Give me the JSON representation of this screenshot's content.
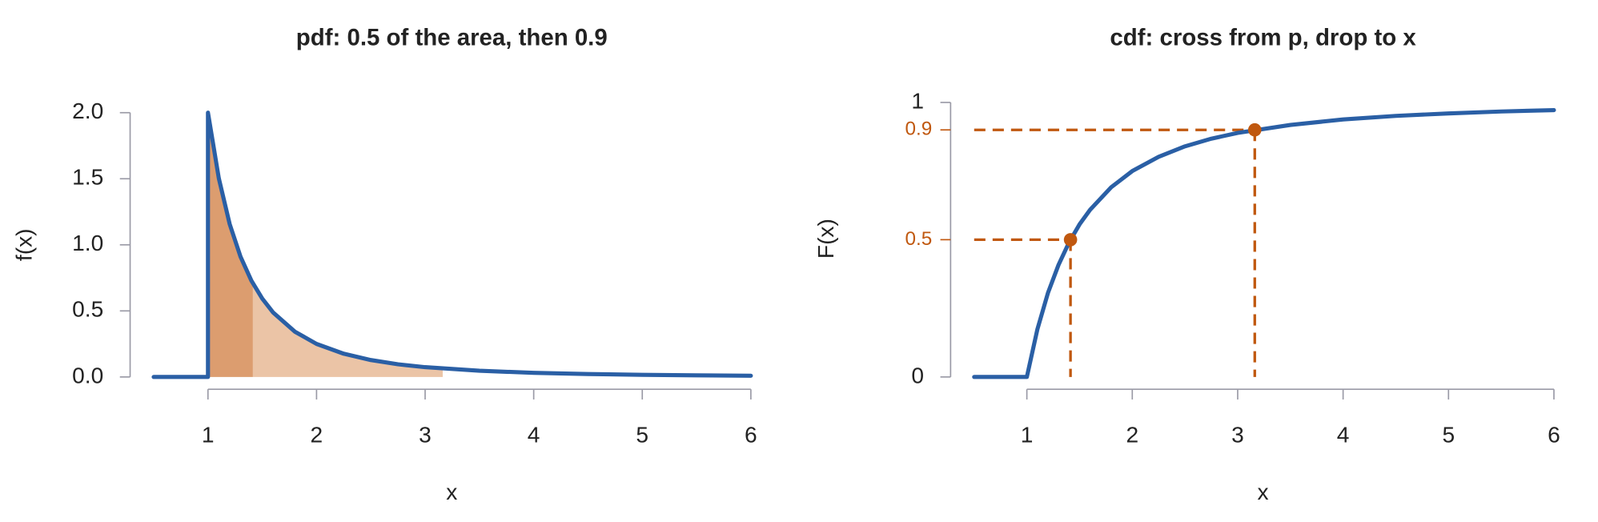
{
  "chart_data": [
    {
      "type": "line",
      "title": "pdf: 0.5 of the area, then 0.9",
      "xlabel": "x",
      "ylabel": "f(x)",
      "x": [
        0.5,
        1,
        1,
        1.1,
        1.2,
        1.3,
        1.4,
        1.5,
        1.6,
        1.8,
        2,
        2.25,
        2.5,
        2.75,
        3,
        3.5,
        4,
        4.5,
        5,
        5.5,
        6
      ],
      "values": [
        0,
        0,
        2,
        1.503,
        1.157,
        0.91,
        0.729,
        0.593,
        0.488,
        0.343,
        0.25,
        0.176,
        0.128,
        0.096,
        0.074,
        0.047,
        0.031,
        0.022,
        0.016,
        0.012,
        0.009
      ],
      "color": "#2a5fa5",
      "xlim": [
        0.5,
        6
      ],
      "ylim": [
        0,
        2
      ],
      "xticks": [
        1,
        2,
        3,
        4,
        5,
        6
      ],
      "yticks": [
        {
          "value": 0,
          "label": "0.0"
        },
        0.5,
        {
          "value": 1,
          "label": "1.0"
        },
        1.5,
        {
          "value": 2,
          "label": "2.0"
        }
      ],
      "regions": [
        {
          "from": 1,
          "to": 1.414,
          "color": "#dc9d6f"
        },
        {
          "from": 1.414,
          "to": 3.162,
          "color": "#ebc4a6"
        }
      ]
    },
    {
      "type": "line",
      "title": "cdf: cross from p, drop to x",
      "xlabel": "x",
      "ylabel": "F(x)",
      "x": [
        0.5,
        1,
        1,
        1.1,
        1.2,
        1.3,
        1.4,
        1.5,
        1.6,
        1.8,
        2,
        2.25,
        2.5,
        2.75,
        3,
        3.5,
        4,
        4.5,
        5,
        5.5,
        6
      ],
      "values": [
        0,
        0,
        0,
        0.174,
        0.306,
        0.408,
        0.49,
        0.556,
        0.609,
        0.691,
        0.75,
        0.802,
        0.84,
        0.868,
        0.889,
        0.918,
        0.938,
        0.951,
        0.96,
        0.967,
        0.972
      ],
      "color": "#2a5fa5",
      "xlim": [
        0.5,
        6
      ],
      "ylim": [
        0,
        1
      ],
      "xticks": [
        1,
        2,
        3,
        4,
        5,
        6
      ],
      "yticks": [
        0,
        1
      ],
      "markers": [
        {
          "x": 1.414,
          "p": 0.5
        },
        {
          "x": 3.162,
          "p": 0.9
        }
      ],
      "marker_color": "#c0580f"
    }
  ]
}
